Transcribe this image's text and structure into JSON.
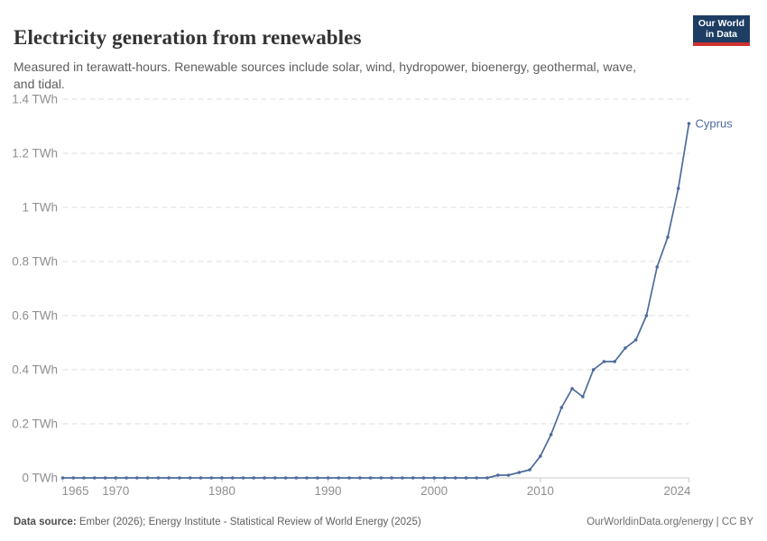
{
  "header": {
    "title": "Electricity generation from renewables",
    "subtitle": "Measured in terawatt-hours. Renewable sources include solar, wind, hydropower, bioenergy, geothermal, wave, and tidal.",
    "logo_line1": "Our World",
    "logo_line2": "in Data"
  },
  "chart_data": {
    "type": "line",
    "title": "Electricity generation from renewables",
    "unit": "TWh",
    "xlim": [
      1965,
      2024
    ],
    "ylim": [
      0,
      1.4
    ],
    "grid": "horizontal-dashed",
    "legend_position": "end-of-line-label",
    "x_ticks": [
      1965,
      1970,
      1980,
      1990,
      2000,
      2010,
      2024
    ],
    "y_ticks": [
      0,
      0.2,
      0.4,
      0.6,
      0.8,
      1,
      1.2,
      1.4
    ],
    "y_tick_labels": [
      "0 TWh",
      "0.2 TWh",
      "0.4 TWh",
      "0.6 TWh",
      "0.8 TWh",
      "1 TWh",
      "1.2 TWh",
      "1.4 TWh"
    ],
    "x": [
      1965,
      1966,
      1967,
      1968,
      1969,
      1970,
      1971,
      1972,
      1973,
      1974,
      1975,
      1976,
      1977,
      1978,
      1979,
      1980,
      1981,
      1982,
      1983,
      1984,
      1985,
      1986,
      1987,
      1988,
      1989,
      1990,
      1991,
      1992,
      1993,
      1994,
      1995,
      1996,
      1997,
      1998,
      1999,
      2000,
      2001,
      2002,
      2003,
      2004,
      2005,
      2006,
      2007,
      2008,
      2009,
      2010,
      2011,
      2012,
      2013,
      2014,
      2015,
      2016,
      2017,
      2018,
      2019,
      2020,
      2021,
      2022,
      2023,
      2024
    ],
    "series": [
      {
        "name": "Cyprus",
        "color": "#4C6A9C",
        "values": [
          0,
          0,
          0,
          0,
          0,
          0,
          0,
          0,
          0,
          0,
          0,
          0,
          0,
          0,
          0,
          0,
          0,
          0,
          0,
          0,
          0,
          0,
          0,
          0,
          0,
          0,
          0,
          0,
          0,
          0,
          0,
          0,
          0,
          0,
          0,
          0,
          0,
          0,
          0,
          0,
          0,
          0.01,
          0.01,
          0.02,
          0.03,
          0.08,
          0.16,
          0.26,
          0.33,
          0.3,
          0.4,
          0.43,
          0.43,
          0.48,
          0.51,
          0.6,
          0.78,
          0.89,
          1.07,
          1.31
        ]
      }
    ]
  },
  "footer": {
    "source_label": "Data source:",
    "source_text": " Ember (2026); Energy Institute - Statistical Review of World Energy (2025)",
    "right_text": "OurWorldinData.org/energy | CC BY"
  },
  "colors": {
    "line": "#4C6A9C",
    "gridline": "#dedede",
    "axis": "#c8c8c8",
    "tick_text": "#8f8f8f",
    "logo_bg": "#1d3d63",
    "logo_accent": "#cf3130"
  }
}
